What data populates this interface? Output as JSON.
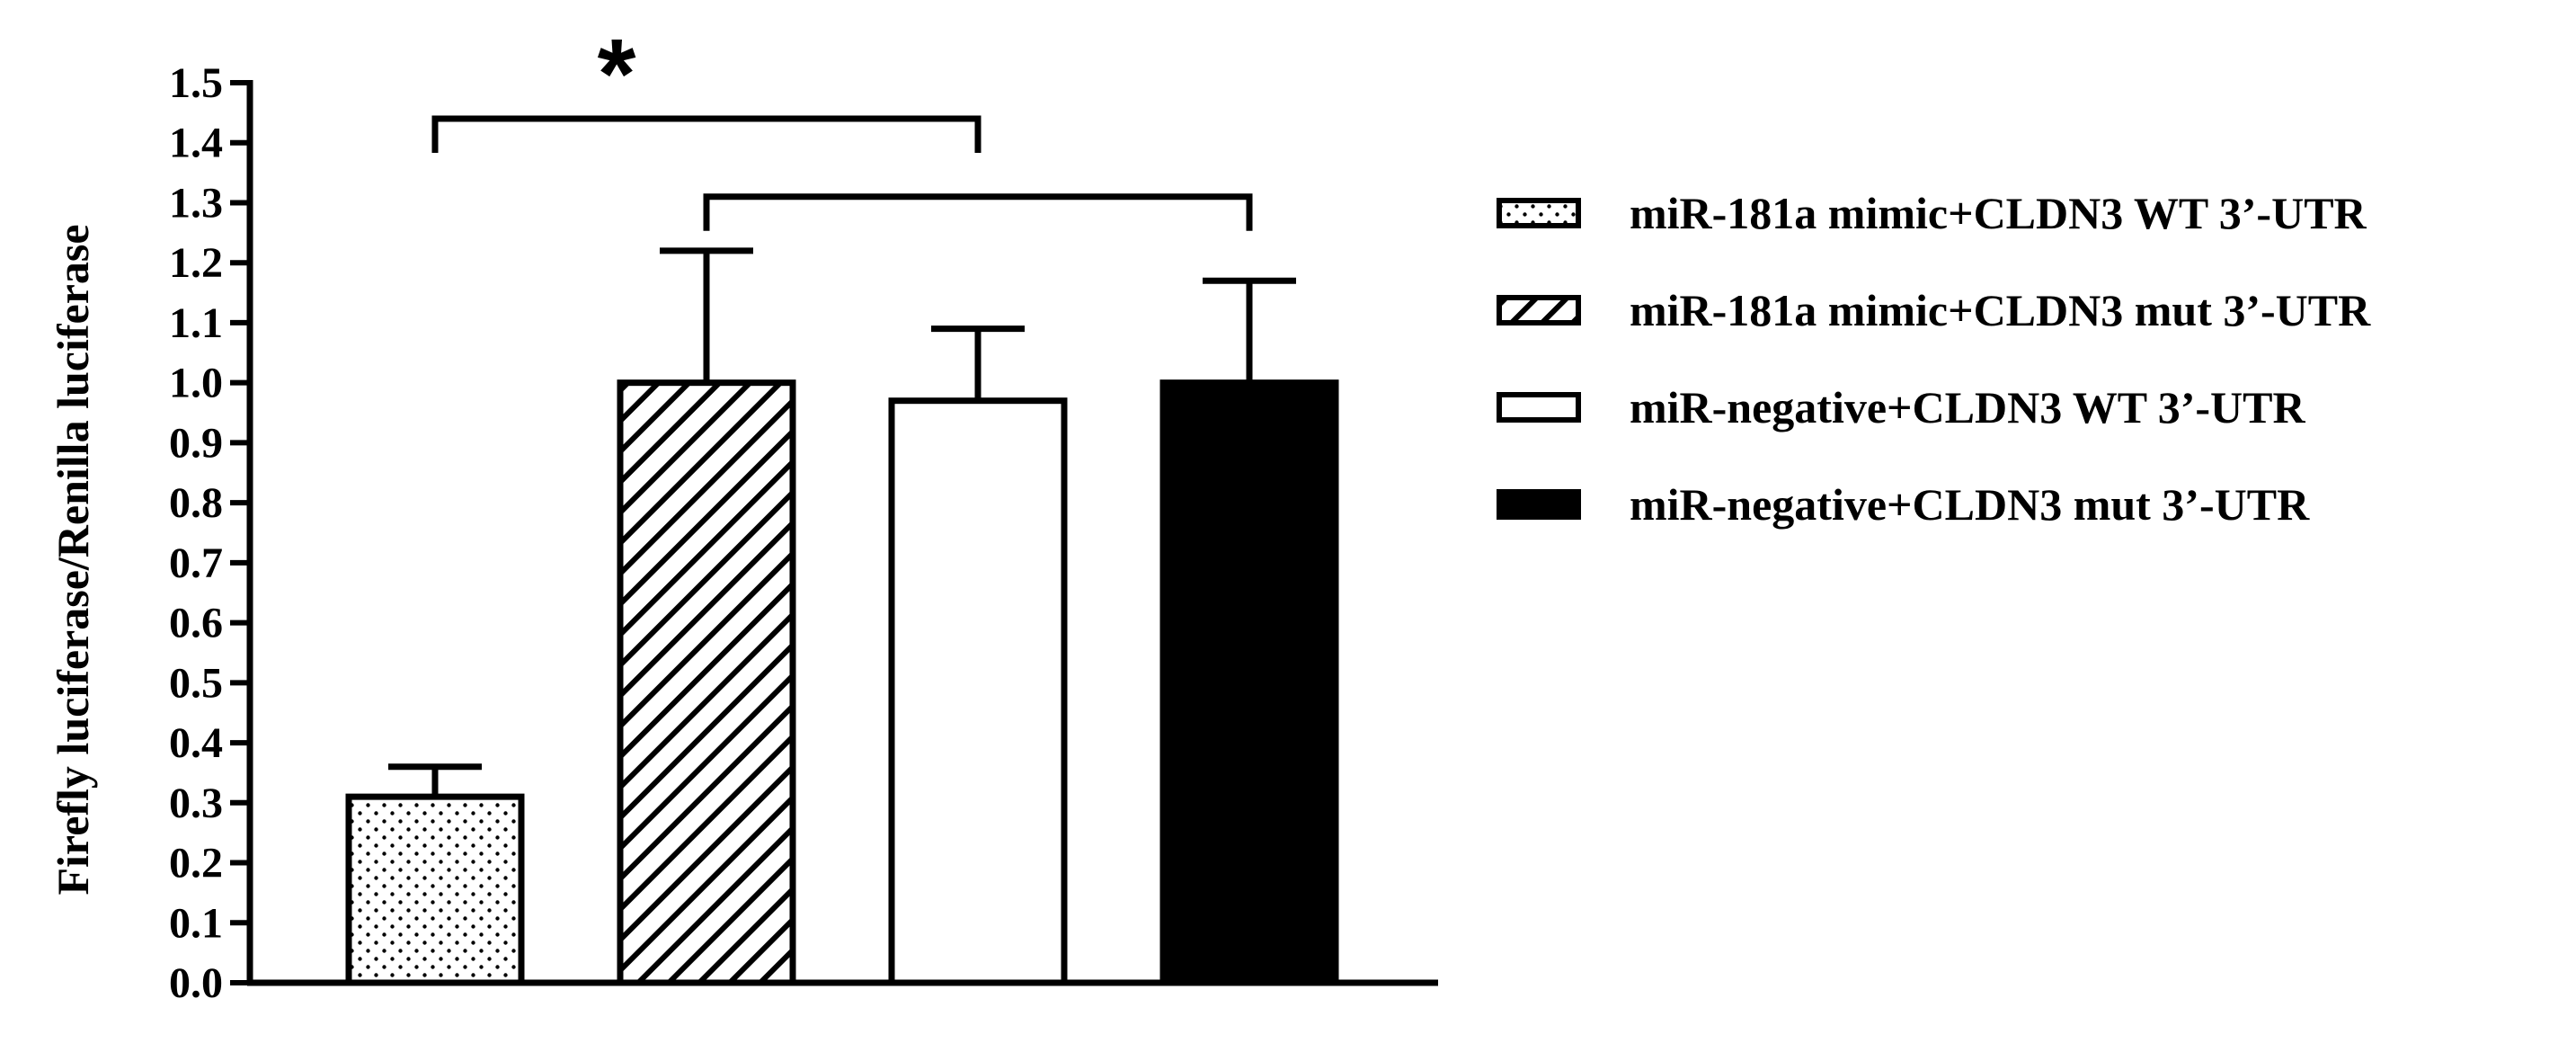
{
  "chart_data": {
    "type": "bar",
    "ylabel": "Firefly luciferase/Renilla luciferase",
    "xlabel": "",
    "ylim": [
      0,
      1.5
    ],
    "yticks": [
      "0.0",
      "0.1",
      "0.2",
      "0.3",
      "0.4",
      "0.5",
      "0.6",
      "0.7",
      "0.8",
      "0.9",
      "1.0",
      "1.1",
      "1.2",
      "1.3",
      "1.4",
      "1.5"
    ],
    "grid": false,
    "legend_position": "right",
    "series": [
      {
        "name": "miR-181a mimic+CLDN3 WT 3’-UTR",
        "value": 0.31,
        "error": 0.05,
        "pattern": "dots"
      },
      {
        "name": "miR-181a mimic+CLDN3 mut 3’-UTR",
        "value": 1.0,
        "error": 0.22,
        "pattern": "hatch"
      },
      {
        "name": "miR-negative+CLDN3 WT 3’-UTR",
        "value": 0.97,
        "error": 0.12,
        "pattern": "white"
      },
      {
        "name": "miR-negative+CLDN3 mut 3’-UTR",
        "value": 1.0,
        "error": 0.17,
        "pattern": "black"
      }
    ],
    "annotations": [
      {
        "type": "bracket",
        "from": 0,
        "to": 2,
        "level": 1.44,
        "label": "*"
      },
      {
        "type": "bracket",
        "from": 1,
        "to": 3,
        "level": 1.31,
        "label": ""
      }
    ]
  }
}
